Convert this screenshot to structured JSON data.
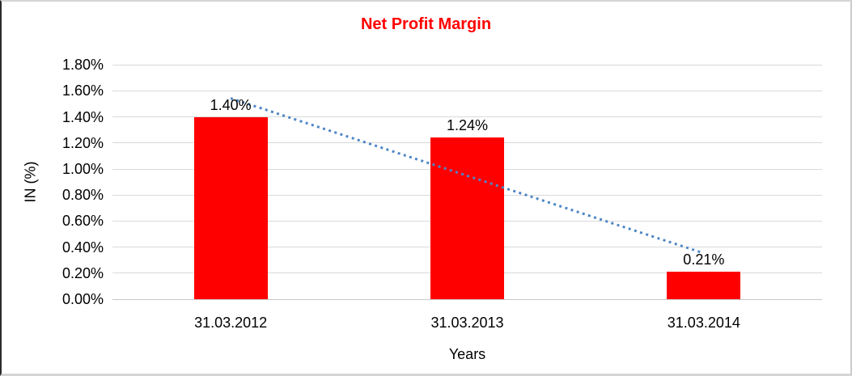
{
  "frame": {
    "background": "#ffffff"
  },
  "chart_data": {
    "type": "bar",
    "title": "Net Profit Margin",
    "categories": [
      "31.03.2012",
      "31.03.2013",
      "31.03.2014"
    ],
    "values": [
      1.4,
      1.24,
      0.21
    ],
    "value_labels": [
      "1.40%",
      "1.24%",
      "0.21%"
    ],
    "xlabel": "Years",
    "ylabel": "IN (%)",
    "y_ticks": [
      "1.80%",
      "1.60%",
      "1.40%",
      "1.20%",
      "1.00%",
      "0.80%",
      "0.60%",
      "0.40%",
      "0.20%",
      "0.00%"
    ],
    "ylim": [
      0,
      1.8
    ],
    "grid": "horizontal",
    "legend": "none",
    "trendline": {
      "type": "linear",
      "style": "dotted",
      "fitted_endpoint_values": [
        1.545,
        0.355
      ]
    },
    "colors": {
      "bar": "#FF0000",
      "title": "#FF0000",
      "trendline": "#4F86C6",
      "gridline": "#D9D9D9",
      "axis_line": "#C8C8C8",
      "text": "#000000"
    }
  }
}
